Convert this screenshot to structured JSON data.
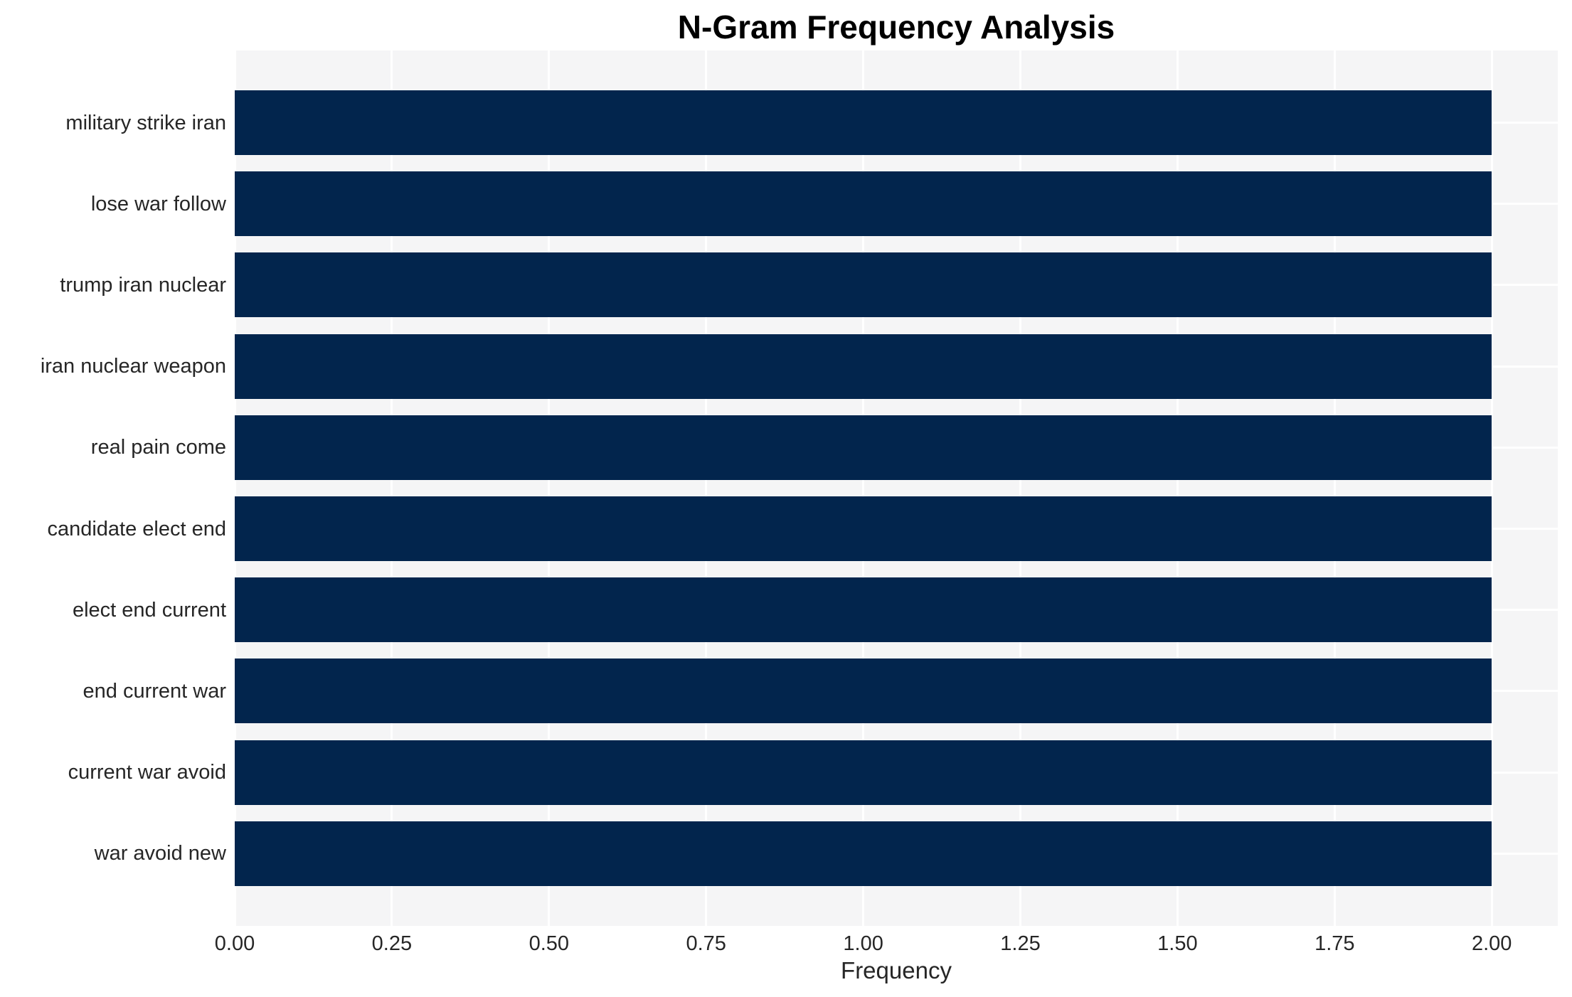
{
  "chart_data": {
    "type": "bar",
    "orientation": "horizontal",
    "title": "N-Gram Frequency Analysis",
    "xlabel": "Frequency",
    "ylabel": "",
    "categories": [
      "military strike iran",
      "lose war follow",
      "trump iran nuclear",
      "iran nuclear weapon",
      "real pain come",
      "candidate elect end",
      "elect end current",
      "end current war",
      "current war avoid",
      "war avoid new"
    ],
    "values": [
      2,
      2,
      2,
      2,
      2,
      2,
      2,
      2,
      2,
      2
    ],
    "x_ticks": [
      "0.00",
      "0.25",
      "0.50",
      "0.75",
      "1.00",
      "1.25",
      "1.50",
      "1.75",
      "2.00"
    ],
    "xlim": [
      0,
      2.105
    ],
    "grid": true,
    "legend": "none",
    "colors": {
      "bar": "#02254d",
      "plot_background": "#f5f5f6",
      "grid_line": "#ffffff",
      "figure_background": "#ffffff",
      "tick_text": "#262626",
      "title_text": "#000000"
    }
  }
}
